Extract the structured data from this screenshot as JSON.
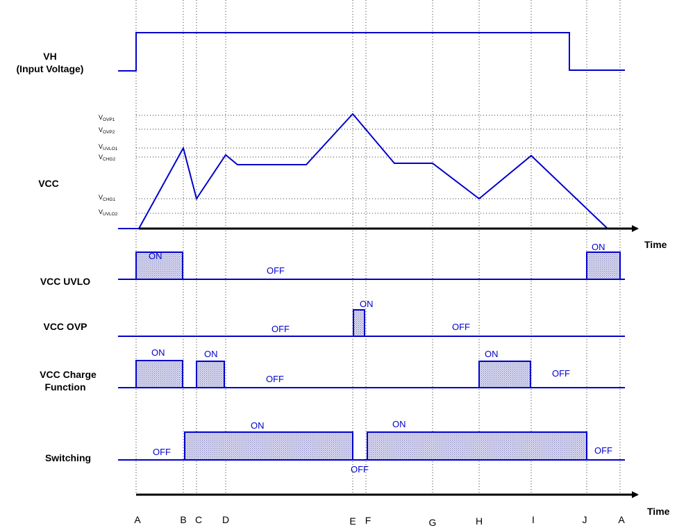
{
  "rows": {
    "vh": [
      "VH",
      "(Input Voltage)"
    ],
    "vcc": "VCC",
    "uvlo": "VCC UVLO",
    "ovp": "VCC OVP",
    "charge": [
      "VCC Charge",
      "Function"
    ],
    "switching": "Switching"
  },
  "time_label": "Time",
  "time_points": [
    "A",
    "B",
    "C",
    "D",
    "E",
    "F",
    "G",
    "H",
    "I",
    "J",
    "A"
  ],
  "vcc_levels": [
    {
      "main": "V",
      "sub": "OVP1"
    },
    {
      "main": "V",
      "sub": "OVP2"
    },
    {
      "main": "V",
      "sub": "UVLO1"
    },
    {
      "main": "V",
      "sub": "CHG2"
    },
    {
      "main": "V",
      "sub": "CHG1"
    },
    {
      "main": "V",
      "sub": "UVLO2"
    }
  ],
  "states": {
    "on": "ON",
    "off": "OFF"
  },
  "colors": {
    "waveform": "#0000cc",
    "axis": "#000000"
  }
}
